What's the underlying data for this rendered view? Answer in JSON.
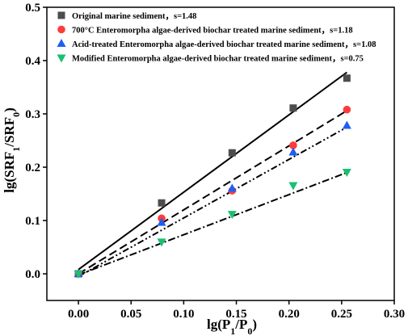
{
  "chart_data": {
    "type": "scatter",
    "title": "",
    "xlabel": {
      "base": "lg(P",
      "sub1": "1",
      "mid": "/P",
      "sub2": "0",
      "end": ")"
    },
    "ylabel": {
      "base": "lg(SRF",
      "sub1": "1",
      "mid": "/SRF",
      "sub2": "0",
      "end": ")"
    },
    "xlim": [
      -0.03,
      0.3
    ],
    "ylim": [
      -0.05,
      0.5
    ],
    "xticks": [
      "0.00",
      "0.05",
      "0.10",
      "0.15",
      "0.20",
      "0.25",
      "0.30"
    ],
    "yticks": [
      "0.0",
      "0.1",
      "0.2",
      "0.3",
      "0.4",
      "0.5"
    ],
    "xtick_values": [
      0.0,
      0.05,
      0.1,
      0.15,
      0.2,
      0.25,
      0.3
    ],
    "ytick_values": [
      0.0,
      0.1,
      0.2,
      0.3,
      0.4,
      0.5
    ],
    "legend_position": "top-left",
    "x": [
      0.0,
      0.079,
      0.146,
      0.204,
      0.255
    ],
    "series": [
      {
        "name": "Original marine sediment，s=1.48",
        "marker": "square",
        "color": "#4d4d4d",
        "line_style": "solid",
        "values": [
          0.0,
          0.133,
          0.227,
          0.311,
          0.367
        ],
        "fit": {
          "x": [
            0.0,
            0.255
          ],
          "y": [
            0.008,
            0.378
          ]
        }
      },
      {
        "name": "700°C Enteromorpha algae-derived biochar treated marine sediment，s=1.18",
        "marker": "circle",
        "color": "#ff3b3b",
        "line_style": "dashed",
        "values": [
          0.0,
          0.104,
          0.156,
          0.241,
          0.308
        ],
        "fit": {
          "x": [
            0.0,
            0.255
          ],
          "y": [
            0.0,
            0.306
          ]
        }
      },
      {
        "name": "Acid-treated Enteromorpha algae-derived biochar treated marine sediment，s=1.08",
        "marker": "triangle-up",
        "color": "#1f5ff0",
        "line_style": "dash-dot-dot",
        "values": [
          0.0,
          0.096,
          0.16,
          0.228,
          0.278
        ],
        "fit": {
          "x": [
            0.0,
            0.255
          ],
          "y": [
            -0.005,
            0.275
          ]
        }
      },
      {
        "name": "Modified Enteromorpha algae-derived biochar treated marine sediment，s=0.75",
        "marker": "triangle-down",
        "color": "#19c070",
        "line_style": "dash-dot",
        "values": [
          0.0,
          0.06,
          0.112,
          0.166,
          0.191
        ],
        "fit": {
          "x": [
            0.0,
            0.255
          ],
          "y": [
            -0.002,
            0.19
          ]
        }
      }
    ]
  }
}
